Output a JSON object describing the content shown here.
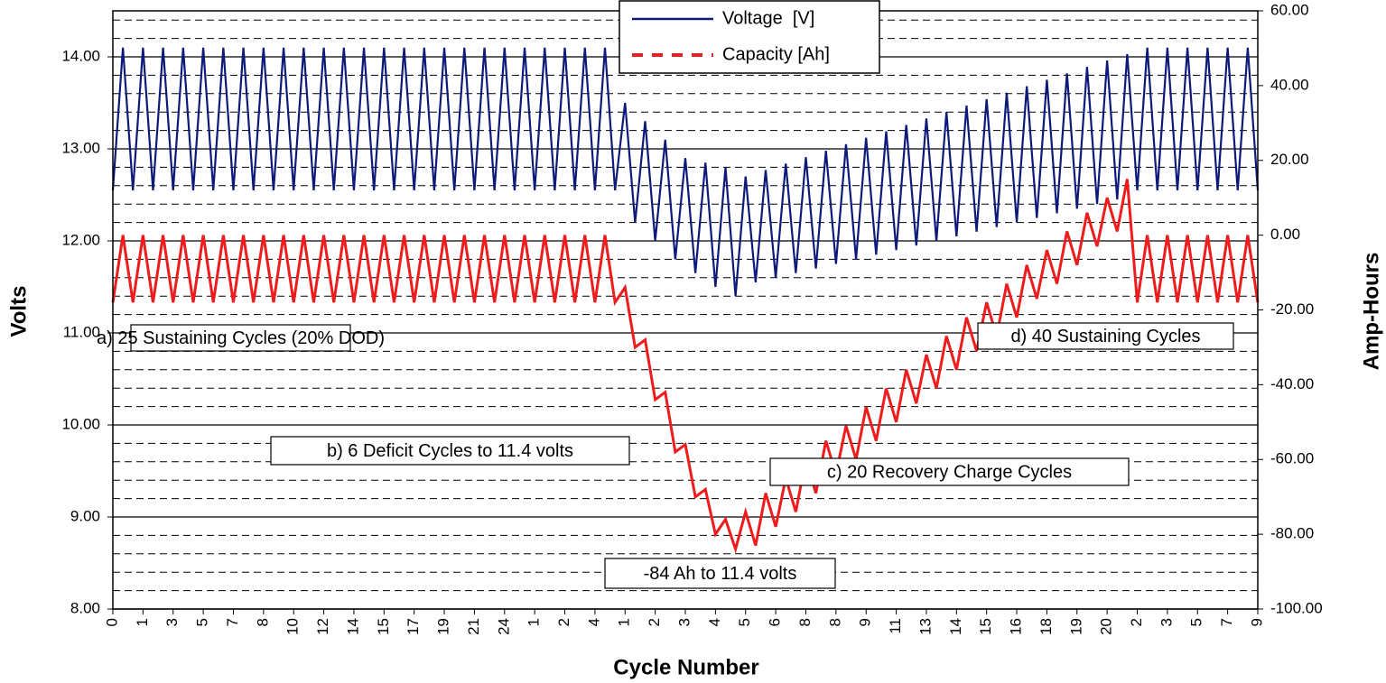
{
  "chart_data": {
    "type": "line",
    "y_title": "Volts",
    "y2_title": "Amp-Hours",
    "x_title": "Cycle Number",
    "xlim": [
      0,
      57
    ],
    "ylim": [
      8,
      14.5
    ],
    "y2lim": [
      -100,
      60
    ],
    "yticks": [
      {
        "value": 8,
        "label": "8.00"
      },
      {
        "value": 9,
        "label": "9.00"
      },
      {
        "value": 10,
        "label": "10.00"
      },
      {
        "value": 11,
        "label": "11.00"
      },
      {
        "value": 12,
        "label": "12.00"
      },
      {
        "value": 13,
        "label": "13.00"
      },
      {
        "value": 14,
        "label": "14.00"
      }
    ],
    "minor_yticks": [
      8.2,
      8.4,
      8.6,
      8.8,
      9.2,
      9.4,
      9.6,
      9.8,
      10.2,
      10.4,
      10.6,
      10.8,
      11.2,
      11.4,
      11.6,
      11.8,
      12.2,
      12.4,
      12.6,
      12.8,
      13.2,
      13.4,
      13.6,
      13.8,
      14.2,
      14.4
    ],
    "y2ticks": [
      {
        "value": -100,
        "label": "-100.00"
      },
      {
        "value": -80,
        "label": "-80.00"
      },
      {
        "value": -60,
        "label": "-60.00"
      },
      {
        "value": -40,
        "label": "-40.00"
      },
      {
        "value": -20,
        "label": "-20.00"
      },
      {
        "value": 0,
        "label": "0.00"
      },
      {
        "value": 20,
        "label": "20.00"
      },
      {
        "value": 40,
        "label": "40.00"
      },
      {
        "value": 60,
        "label": "60.00"
      }
    ],
    "xticks": [
      {
        "value": 0,
        "label": "0"
      },
      {
        "value": 1.5,
        "label": "1"
      },
      {
        "value": 3,
        "label": "3"
      },
      {
        "value": 4.5,
        "label": "5"
      },
      {
        "value": 6,
        "label": "7"
      },
      {
        "value": 7.5,
        "label": "8"
      },
      {
        "value": 9,
        "label": "10"
      },
      {
        "value": 10.5,
        "label": "12"
      },
      {
        "value": 12,
        "label": "14"
      },
      {
        "value": 13.5,
        "label": "15"
      },
      {
        "value": 15,
        "label": "17"
      },
      {
        "value": 16.5,
        "label": "19"
      },
      {
        "value": 18,
        "label": "21"
      },
      {
        "value": 19.5,
        "label": "24"
      },
      {
        "value": 21,
        "label": "1"
      },
      {
        "value": 22.5,
        "label": "2"
      },
      {
        "value": 24,
        "label": "4"
      },
      {
        "value": 25.5,
        "label": "1"
      },
      {
        "value": 27,
        "label": "2"
      },
      {
        "value": 28.5,
        "label": "3"
      },
      {
        "value": 30,
        "label": "4"
      },
      {
        "value": 31.5,
        "label": "5"
      },
      {
        "value": 33,
        "label": "6"
      },
      {
        "value": 34.5,
        "label": "8"
      },
      {
        "value": 36,
        "label": "8"
      },
      {
        "value": 37.5,
        "label": "9"
      },
      {
        "value": 39,
        "label": "11"
      },
      {
        "value": 40.5,
        "label": "13"
      },
      {
        "value": 42,
        "label": "14"
      },
      {
        "value": 43.5,
        "label": "15"
      },
      {
        "value": 45,
        "label": "16"
      },
      {
        "value": 46.5,
        "label": "18"
      },
      {
        "value": 48,
        "label": "19"
      },
      {
        "value": 49.5,
        "label": "20"
      },
      {
        "value": 51,
        "label": "2"
      },
      {
        "value": 52.5,
        "label": "3"
      },
      {
        "value": 54,
        "label": "5"
      },
      {
        "value": 55.5,
        "label": "7"
      },
      {
        "value": 57,
        "label": "9"
      }
    ],
    "x": [
      0,
      0.5,
      1,
      1.5,
      2,
      2.5,
      3,
      3.5,
      4,
      4.5,
      5,
      5.5,
      6,
      6.5,
      7,
      7.5,
      8,
      8.5,
      9,
      9.5,
      10,
      10.5,
      11,
      11.5,
      12,
      12.5,
      13,
      13.5,
      14,
      14.5,
      15,
      15.5,
      16,
      16.5,
      17,
      17.5,
      18,
      18.5,
      19,
      19.5,
      20,
      20.5,
      21,
      21.5,
      22,
      22.5,
      23,
      23.5,
      24,
      24.5,
      25,
      25.5,
      26,
      26.5,
      27,
      27.5,
      28,
      28.5,
      29,
      29.5,
      30,
      30.5,
      31,
      31.5,
      32,
      32.5,
      33,
      33.5,
      34,
      34.5,
      35,
      35.5,
      36,
      36.5,
      37,
      37.5,
      38,
      38.5,
      39,
      39.5,
      40,
      40.5,
      41,
      41.5,
      42,
      42.5,
      43,
      43.5,
      44,
      44.5,
      45,
      45.5,
      46,
      46.5,
      47,
      47.5,
      48,
      48.5,
      49,
      49.5,
      50,
      50.5,
      51,
      51.5,
      52,
      52.5,
      53,
      53.5,
      54,
      54.5,
      55,
      55.5,
      56,
      56.5,
      57
    ],
    "series": [
      {
        "name": "Voltage  [V]",
        "color": "#0d1a7a",
        "values": [
          12.55,
          14.1,
          12.55,
          14.1,
          12.55,
          14.1,
          12.55,
          14.1,
          12.55,
          14.1,
          12.55,
          14.1,
          12.55,
          14.1,
          12.55,
          14.1,
          12.55,
          14.1,
          12.55,
          14.1,
          12.55,
          14.1,
          12.55,
          14.1,
          12.55,
          14.1,
          12.55,
          14.1,
          12.55,
          14.1,
          12.55,
          14.1,
          12.55,
          14.1,
          12.55,
          14.1,
          12.55,
          14.1,
          12.55,
          14.1,
          12.55,
          14.1,
          12.55,
          14.1,
          12.55,
          14.1,
          12.55,
          14.1,
          12.55,
          14.1,
          12.55,
          13.5,
          12.2,
          13.3,
          12.0,
          13.1,
          11.8,
          12.9,
          11.65,
          12.85,
          11.5,
          12.8,
          11.4,
          12.7,
          11.55,
          12.77,
          11.6,
          12.84,
          11.65,
          12.91,
          11.7,
          12.98,
          11.75,
          13.05,
          11.8,
          13.12,
          11.85,
          13.19,
          11.9,
          13.26,
          11.95,
          13.33,
          12.0,
          13.4,
          12.05,
          13.47,
          12.1,
          13.54,
          12.15,
          13.61,
          12.2,
          13.68,
          12.25,
          13.75,
          12.3,
          13.82,
          12.35,
          13.89,
          12.4,
          13.96,
          12.45,
          14.03,
          12.55,
          14.1,
          12.55,
          14.1,
          12.55,
          14.1,
          12.55,
          14.1,
          12.55,
          14.1,
          12.55,
          14.1,
          12.55
        ]
      },
      {
        "name": "Capacity [Ah]",
        "color": "#ee1c1c",
        "axis": "y2",
        "values": [
          -18,
          0,
          -18,
          0,
          -18,
          0,
          -18,
          0,
          -18,
          0,
          -18,
          0,
          -18,
          0,
          -18,
          0,
          -18,
          0,
          -18,
          0,
          -18,
          0,
          -18,
          0,
          -18,
          0,
          -18,
          0,
          -18,
          0,
          -18,
          0,
          -18,
          0,
          -18,
          0,
          -18,
          0,
          -18,
          0,
          -18,
          0,
          -18,
          0,
          -18,
          0,
          -18,
          0,
          -18,
          0,
          -18,
          -14,
          -30,
          -28,
          -44,
          -42,
          -58,
          -56,
          -70,
          -68,
          -80,
          -76,
          -84,
          -74,
          -83,
          -69,
          -78,
          -65,
          -74,
          -60,
          -69,
          -55,
          -64,
          -51,
          -60,
          -46,
          -55,
          -41,
          -50,
          -36,
          -45,
          -32,
          -41,
          -27,
          -36,
          -22,
          -31,
          -18,
          -27,
          -13,
          -22,
          -8,
          -17,
          -4,
          -13,
          1,
          -8,
          6,
          -3,
          10,
          1,
          15,
          -18,
          0,
          -18,
          0,
          -18,
          0,
          -18,
          0,
          -18,
          0,
          -18,
          0,
          -18
        ]
      }
    ],
    "annotations": [
      "a) 25 Sustaining Cycles (20% DOD)",
      "b) 6 Deficit Cycles to 11.4 volts",
      "c) 20 Recovery Charge Cycles",
      "-84 Ah to 11.4 volts",
      "d) 40 Sustaining Cycles"
    ],
    "grid": true
  }
}
